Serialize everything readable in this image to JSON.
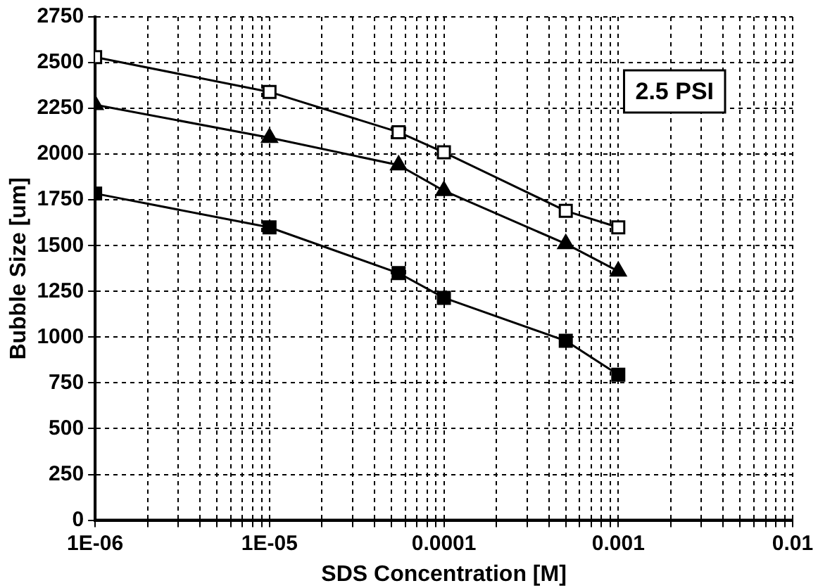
{
  "chart_data": {
    "type": "line",
    "xlabel": "SDS Concentration [M]",
    "ylabel": "Bubble Size [um]",
    "log": "x",
    "grid": true,
    "legend": false,
    "line_style": "solid",
    "annotations": [
      "2.5 PSI"
    ],
    "xlim": [
      1e-06,
      0.01
    ],
    "xticks": [
      {
        "value": 1e-06,
        "label": "1E-06"
      },
      {
        "value": 2e-06,
        "label": null
      },
      {
        "value": 3e-06,
        "label": null
      },
      {
        "value": 4e-06,
        "label": null
      },
      {
        "value": 5e-06,
        "label": null
      },
      {
        "value": 6e-06,
        "label": null
      },
      {
        "value": 7e-06,
        "label": null
      },
      {
        "value": 8e-06,
        "label": null
      },
      {
        "value": 9e-06,
        "label": null
      },
      {
        "value": 1e-05,
        "label": "1E-05"
      },
      {
        "value": 2e-05,
        "label": null
      },
      {
        "value": 3e-05,
        "label": null
      },
      {
        "value": 4e-05,
        "label": null
      },
      {
        "value": 5e-05,
        "label": null
      },
      {
        "value": 6e-05,
        "label": null
      },
      {
        "value": 7e-05,
        "label": null
      },
      {
        "value": 8e-05,
        "label": null
      },
      {
        "value": 9e-05,
        "label": null
      },
      {
        "value": 0.0001,
        "label": "0.0001"
      },
      {
        "value": 0.0002,
        "label": null
      },
      {
        "value": 0.0003,
        "label": null
      },
      {
        "value": 0.0004,
        "label": null
      },
      {
        "value": 0.0005,
        "label": null
      },
      {
        "value": 0.0006,
        "label": null
      },
      {
        "value": 0.0007,
        "label": null
      },
      {
        "value": 0.0008,
        "label": null
      },
      {
        "value": 0.0009,
        "label": null
      },
      {
        "value": 0.001,
        "label": "0.001"
      },
      {
        "value": 0.002,
        "label": null
      },
      {
        "value": 0.003,
        "label": null
      },
      {
        "value": 0.004,
        "label": null
      },
      {
        "value": 0.005,
        "label": null
      },
      {
        "value": 0.006,
        "label": null
      },
      {
        "value": 0.007,
        "label": null
      },
      {
        "value": 0.008,
        "label": null
      },
      {
        "value": 0.009,
        "label": null
      },
      {
        "value": 0.01,
        "label": "0.01"
      }
    ],
    "ylim": [
      0,
      2750
    ],
    "yticks": [
      0,
      250,
      500,
      750,
      1000,
      1250,
      1500,
      1750,
      2000,
      2250,
      2500,
      2750
    ],
    "x": [
      1e-06,
      1e-05,
      5.5e-05,
      0.0001,
      0.0005,
      0.001
    ],
    "series": [
      {
        "color": "#000000",
        "marker": "square",
        "colors": [
          "#ffffff",
          "#ffffff",
          "#ffffff",
          "#ffffff",
          "#ffffff",
          "#ffffff"
        ],
        "values": [
          2530,
          2340,
          2120,
          2010,
          1690,
          1600
        ]
      },
      {
        "color": "#000000",
        "marker": "triangle",
        "values": [
          2270,
          2090,
          1940,
          1800,
          1510,
          1360
        ]
      },
      {
        "color": "#000000",
        "marker": "square",
        "values": [
          1785,
          1600,
          1350,
          1215,
          980,
          795
        ]
      }
    ]
  }
}
